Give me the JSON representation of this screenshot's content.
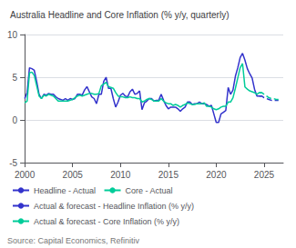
{
  "chart_data": {
    "type": "line",
    "title": "Australia Headline and Core Inflation (% y/y, quarterly)",
    "annotations": [
      "Source: Capital Economics, Refinitiv"
    ],
    "xlim": [
      2000,
      2027
    ],
    "ylim": [
      -5,
      10
    ],
    "xticks": [
      2000,
      2005,
      2010,
      2015,
      2020,
      2025
    ],
    "yticks": [
      -5,
      0,
      5,
      10
    ],
    "grid": true,
    "legend": "lower left",
    "series": [
      {
        "name": "Headline - Actual",
        "color": "#3333cc",
        "line_style": "solid",
        "x": [
          2000.0,
          2000.25,
          2000.5,
          2000.75,
          2001.0,
          2001.25,
          2001.5,
          2001.75,
          2002.0,
          2002.25,
          2002.5,
          2002.75,
          2003.0,
          2003.25,
          2003.5,
          2003.75,
          2004.0,
          2004.25,
          2004.5,
          2004.75,
          2005.0,
          2005.25,
          2005.5,
          2005.75,
          2006.0,
          2006.25,
          2006.5,
          2006.75,
          2007.0,
          2007.25,
          2007.5,
          2007.75,
          2008.0,
          2008.25,
          2008.5,
          2008.75,
          2009.0,
          2009.25,
          2009.5,
          2009.75,
          2010.0,
          2010.25,
          2010.5,
          2010.75,
          2011.0,
          2011.25,
          2011.5,
          2011.75,
          2012.0,
          2012.25,
          2012.5,
          2012.75,
          2013.0,
          2013.25,
          2013.5,
          2013.75,
          2014.0,
          2014.25,
          2014.5,
          2014.75,
          2015.0,
          2015.25,
          2015.5,
          2015.75,
          2016.0,
          2016.25,
          2016.5,
          2016.75,
          2017.0,
          2017.25,
          2017.5,
          2017.75,
          2018.0,
          2018.25,
          2018.5,
          2018.75,
          2019.0,
          2019.25,
          2019.5,
          2019.75,
          2020.0,
          2020.25,
          2020.5,
          2020.75,
          2021.0,
          2021.25,
          2021.5,
          2021.75,
          2022.0,
          2022.25,
          2022.5,
          2022.75,
          2023.0,
          2023.25,
          2023.5,
          2023.75,
          2024.0,
          2024.25,
          2024.5,
          2024.75
        ],
        "values": [
          2.5,
          3.2,
          6.1,
          6.0,
          5.8,
          4.5,
          3.0,
          2.5,
          3.0,
          2.9,
          3.1,
          3.0,
          3.0,
          2.7,
          2.5,
          2.4,
          2.3,
          2.5,
          2.3,
          2.5,
          2.4,
          2.5,
          3.0,
          3.0,
          2.9,
          3.5,
          3.9,
          3.3,
          2.7,
          2.5,
          1.9,
          3.0,
          3.0,
          4.5,
          5.0,
          3.7,
          3.7,
          2.5,
          1.5,
          2.1,
          2.9,
          3.1,
          2.8,
          2.7,
          3.3,
          3.6,
          3.0,
          3.1,
          3.4,
          1.2,
          2.0,
          2.2,
          2.5,
          2.5,
          2.2,
          2.3,
          2.3,
          3.0,
          2.3,
          1.7,
          1.3,
          1.5,
          1.5,
          1.5,
          1.3,
          1.0,
          1.3,
          1.5,
          2.1,
          2.1,
          1.8,
          1.9,
          1.9,
          2.1,
          1.9,
          1.9,
          1.8,
          1.6,
          1.7,
          0.7,
          -0.3,
          -0.3,
          0.7,
          0.9,
          1.1,
          3.8,
          3.0,
          3.5,
          5.1,
          6.1,
          7.3,
          7.8,
          7.0,
          6.0,
          5.4,
          4.9,
          3.6,
          2.8,
          2.8,
          2.8
        ]
      },
      {
        "name": "Core - Actual",
        "color": "#00cc99",
        "line_style": "solid",
        "x": [
          2000.0,
          2000.25,
          2000.5,
          2000.75,
          2001.0,
          2001.25,
          2001.5,
          2001.75,
          2002.0,
          2002.25,
          2002.5,
          2002.75,
          2003.0,
          2003.25,
          2003.5,
          2003.75,
          2004.0,
          2004.25,
          2004.5,
          2004.75,
          2005.0,
          2005.25,
          2005.5,
          2005.75,
          2006.0,
          2006.25,
          2006.5,
          2006.75,
          2007.0,
          2007.25,
          2007.5,
          2007.75,
          2008.0,
          2008.25,
          2008.5,
          2008.75,
          2009.0,
          2009.25,
          2009.5,
          2009.75,
          2010.0,
          2010.25,
          2010.5,
          2010.75,
          2011.0,
          2011.25,
          2011.5,
          2011.75,
          2012.0,
          2012.25,
          2012.5,
          2012.75,
          2013.0,
          2013.25,
          2013.5,
          2013.75,
          2014.0,
          2014.25,
          2014.5,
          2014.75,
          2015.0,
          2015.25,
          2015.5,
          2015.75,
          2016.0,
          2016.25,
          2016.5,
          2016.75,
          2017.0,
          2017.25,
          2017.5,
          2017.75,
          2018.0,
          2018.25,
          2018.5,
          2018.75,
          2019.0,
          2019.25,
          2019.5,
          2019.75,
          2020.0,
          2020.25,
          2020.5,
          2020.75,
          2021.0,
          2021.25,
          2021.5,
          2021.75,
          2022.0,
          2022.25,
          2022.5,
          2022.75,
          2023.0,
          2023.25,
          2023.5,
          2023.75,
          2024.0,
          2024.25,
          2024.5,
          2024.75
        ],
        "values": [
          2.0,
          2.2,
          5.5,
          5.6,
          5.2,
          4.0,
          2.8,
          2.5,
          2.9,
          2.8,
          3.0,
          2.9,
          2.8,
          2.5,
          2.2,
          2.2,
          2.2,
          2.2,
          2.2,
          2.3,
          2.4,
          2.6,
          2.8,
          2.9,
          2.8,
          2.9,
          3.0,
          3.1,
          3.1,
          3.0,
          3.0,
          3.1,
          4.0,
          4.2,
          4.4,
          3.9,
          3.8,
          3.7,
          3.2,
          2.8,
          2.7,
          2.7,
          2.6,
          2.6,
          2.7,
          2.6,
          2.6,
          2.5,
          2.5,
          2.1,
          2.2,
          2.4,
          2.5,
          2.4,
          2.2,
          2.2,
          2.2,
          2.5,
          2.2,
          2.0,
          1.9,
          1.9,
          1.7,
          1.8,
          1.7,
          1.5,
          1.7,
          1.8,
          2.0,
          1.9,
          1.8,
          1.8,
          1.9,
          1.9,
          1.9,
          2.0,
          1.6,
          1.6,
          1.5,
          1.3,
          1.2,
          1.3,
          1.5,
          1.6,
          1.6,
          2.1,
          2.1,
          2.6,
          3.7,
          4.9,
          6.1,
          6.6,
          3.85,
          3.6,
          3.4,
          3.3,
          3.2,
          3.0,
          3.2,
          3.2
        ]
      },
      {
        "name": "Actual & forecast - Headline Inflation (% y/y)",
        "color": "#3333cc",
        "line_style": "dashed",
        "x": [
          2024.5,
          2024.75,
          2025.0,
          2025.25,
          2025.5,
          2025.75,
          2026.0,
          2026.25,
          2026.5
        ],
        "values": [
          2.8,
          2.8,
          2.6,
          2.5,
          2.4,
          2.3,
          2.3,
          2.3,
          2.3
        ]
      },
      {
        "name": "Actual & forecast - Core Inflation (% y/y)",
        "color": "#00cc99",
        "line_style": "dashed",
        "x": [
          2024.5,
          2024.75,
          2025.0,
          2025.25,
          2025.5,
          2025.75,
          2026.0,
          2026.25,
          2026.5
        ],
        "values": [
          3.2,
          3.2,
          3.0,
          2.8,
          2.6,
          2.5,
          2.5,
          2.4,
          2.4
        ]
      }
    ]
  }
}
